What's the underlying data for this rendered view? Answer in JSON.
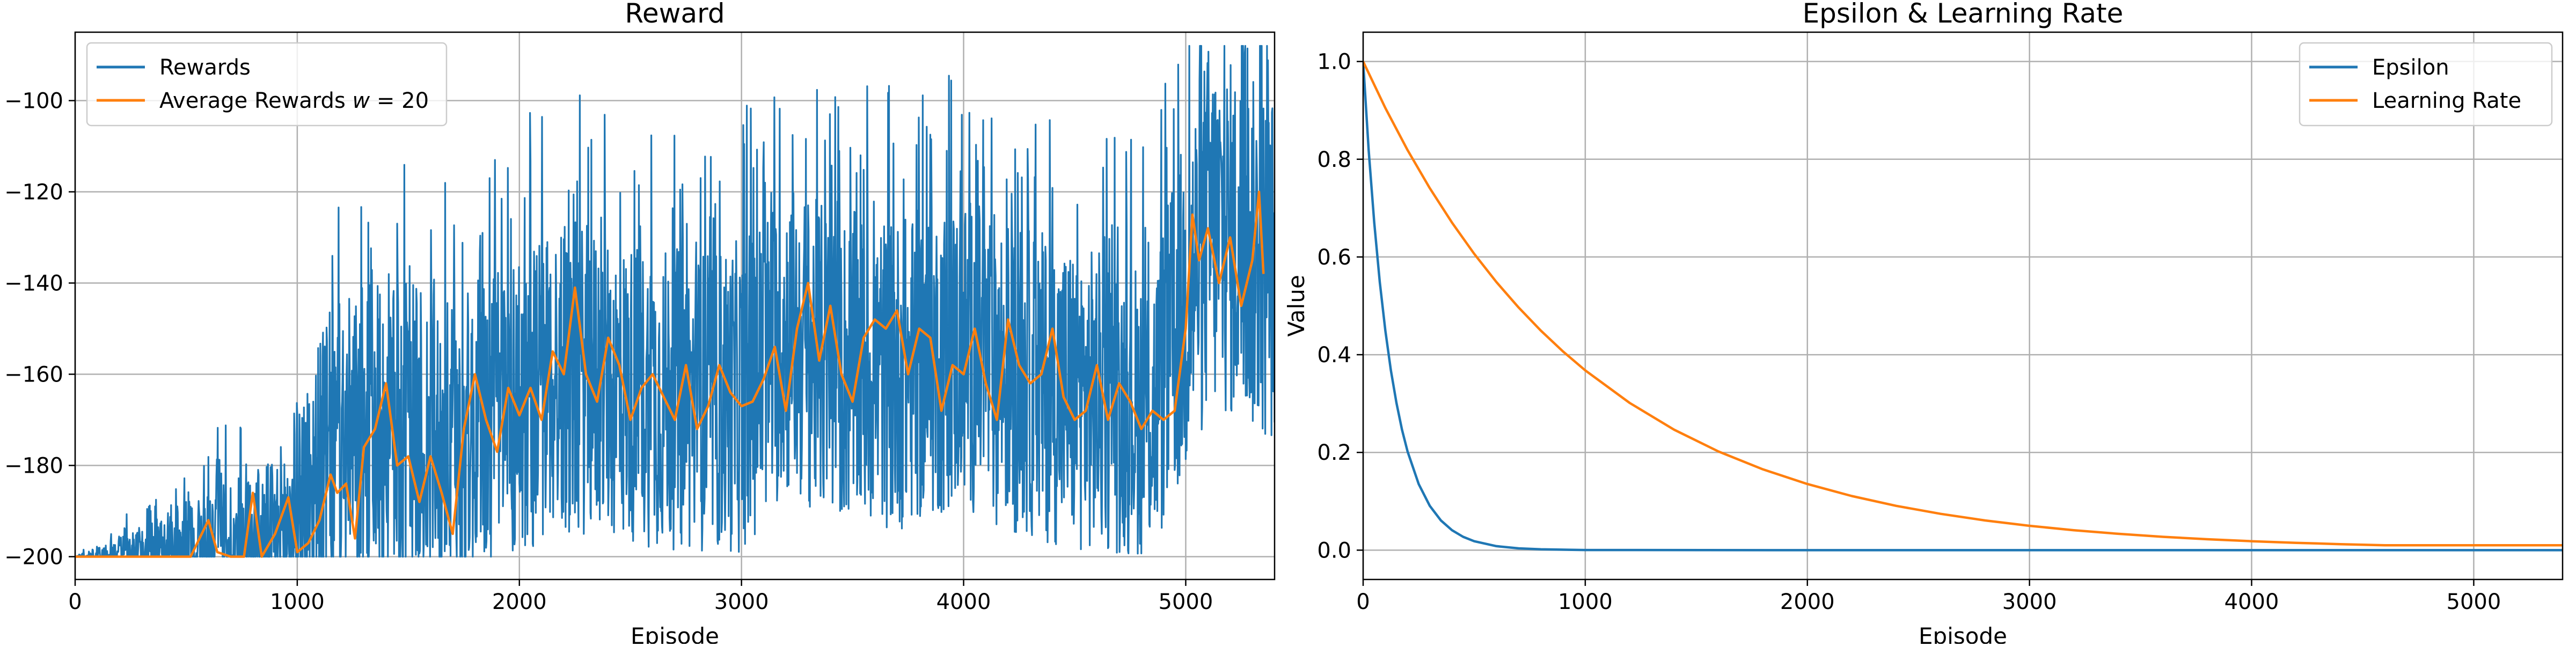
{
  "chart_data": [
    {
      "type": "line",
      "title": "Reward",
      "xlabel": "Episode",
      "ylabel": "",
      "xlim": [
        0,
        5400
      ],
      "ylim": [
        -205,
        -85
      ],
      "xticks": [
        0,
        1000,
        2000,
        3000,
        4000,
        5000
      ],
      "yticks": [
        -100,
        -120,
        -140,
        -160,
        -180,
        -200
      ],
      "grid": true,
      "legend_position": "top-left",
      "series": [
        {
          "name": "Rewards",
          "color": "#1f77b4",
          "kind": "episode-rewards",
          "x": [
            0,
            400,
            500,
            700,
            900,
            1150,
            1400,
            1700,
            2000,
            2200,
            2500,
            2800,
            3000,
            3200,
            3400,
            3700,
            4000,
            4300,
            4600,
            4850,
            5000,
            5100,
            5250,
            5350
          ],
          "mean": [
            -200,
            -200,
            -199,
            -198,
            -197,
            -178,
            -172,
            -176,
            -166,
            -160,
            -164,
            -166,
            -165,
            -152,
            -158,
            -160,
            -155,
            -162,
            -166,
            -168,
            -145,
            -128,
            -132,
            -136
          ],
          "spread": [
            0,
            8,
            10,
            14,
            16,
            28,
            30,
            28,
            30,
            30,
            29,
            29,
            30,
            30,
            30,
            30,
            30,
            30,
            29,
            28,
            34,
            36,
            34,
            34
          ]
        },
        {
          "name": "Average Rewards w = 20",
          "legend_prefix": "Average Rewards ",
          "legend_math": "w",
          "legend_suffix": " = 20",
          "color": "#ff7f0e",
          "x": [
            0,
            400,
            520,
            560,
            600,
            640,
            700,
            760,
            800,
            840,
            900,
            960,
            1000,
            1050,
            1100,
            1150,
            1180,
            1220,
            1260,
            1300,
            1350,
            1400,
            1450,
            1500,
            1550,
            1600,
            1650,
            1700,
            1750,
            1800,
            1850,
            1900,
            1950,
            2000,
            2050,
            2100,
            2150,
            2200,
            2250,
            2300,
            2350,
            2400,
            2450,
            2500,
            2550,
            2600,
            2650,
            2700,
            2750,
            2800,
            2850,
            2900,
            2950,
            3000,
            3050,
            3100,
            3150,
            3200,
            3250,
            3300,
            3350,
            3400,
            3450,
            3500,
            3550,
            3600,
            3650,
            3700,
            3750,
            3800,
            3850,
            3900,
            3950,
            4000,
            4050,
            4100,
            4150,
            4200,
            4250,
            4300,
            4350,
            4400,
            4450,
            4500,
            4550,
            4600,
            4650,
            4700,
            4750,
            4800,
            4850,
            4900,
            4950,
            5000,
            5030,
            5060,
            5100,
            5150,
            5200,
            5250,
            5300,
            5330,
            5350
          ],
          "y": [
            -200,
            -200,
            -200,
            -196,
            -192,
            -199,
            -200,
            -200,
            -186,
            -200,
            -195,
            -187,
            -199,
            -197,
            -192,
            -182,
            -186,
            -184,
            -196,
            -176,
            -172,
            -162,
            -180,
            -178,
            -188,
            -178,
            -186,
            -195,
            -172,
            -160,
            -170,
            -177,
            -163,
            -169,
            -163,
            -170,
            -155,
            -160,
            -141,
            -160,
            -166,
            -152,
            -158,
            -170,
            -163,
            -160,
            -165,
            -170,
            -158,
            -172,
            -167,
            -158,
            -164,
            -167,
            -166,
            -161,
            -154,
            -168,
            -150,
            -140,
            -157,
            -145,
            -160,
            -166,
            -152,
            -148,
            -150,
            -146,
            -160,
            -150,
            -152,
            -168,
            -158,
            -160,
            -150,
            -162,
            -170,
            -148,
            -158,
            -162,
            -160,
            -150,
            -165,
            -170,
            -168,
            -158,
            -170,
            -162,
            -166,
            -172,
            -168,
            -170,
            -168,
            -150,
            -125,
            -135,
            -128,
            -140,
            -130,
            -145,
            -135,
            -120,
            -138
          ]
        }
      ]
    },
    {
      "type": "line",
      "title": "Epsilon & Learning Rate",
      "xlabel": "Episode",
      "ylabel": "Value",
      "xlim": [
        0,
        5400
      ],
      "ylim": [
        -0.06,
        1.06
      ],
      "xticks": [
        0,
        1000,
        2000,
        3000,
        4000,
        5000
      ],
      "yticks": [
        0.0,
        0.2,
        0.4,
        0.6,
        0.8,
        1.0
      ],
      "ytick_labels": [
        "0.0",
        "0.2",
        "0.4",
        "0.6",
        "0.8",
        "1.0"
      ],
      "grid": true,
      "legend_position": "top-right",
      "series": [
        {
          "name": "Epsilon",
          "color": "#1f77b4",
          "x": [
            0,
            25,
            50,
            75,
            100,
            125,
            150,
            175,
            200,
            250,
            300,
            350,
            400,
            450,
            500,
            600,
            700,
            800,
            1000,
            2000,
            3000,
            4000,
            5000,
            5400
          ],
          "y": [
            1.0,
            0.8187,
            0.6703,
            0.5488,
            0.4493,
            0.3679,
            0.3012,
            0.2466,
            0.2019,
            0.1353,
            0.0907,
            0.0608,
            0.0408,
            0.0273,
            0.0183,
            0.0082,
            0.0037,
            0.0017,
            0.0003,
            0.0,
            0.0,
            0.0,
            0.0,
            0.0
          ]
        },
        {
          "name": "Learning Rate",
          "color": "#ff7f0e",
          "x": [
            0,
            100,
            200,
            300,
            400,
            500,
            600,
            700,
            800,
            900,
            1000,
            1200,
            1400,
            1600,
            1800,
            2000,
            2200,
            2400,
            2600,
            2800,
            3000,
            3200,
            3400,
            3600,
            3800,
            4000,
            4200,
            4400,
            4600,
            4800,
            5000,
            5200,
            5400
          ],
          "y": [
            1.0,
            0.9048,
            0.8187,
            0.7408,
            0.6703,
            0.6065,
            0.5488,
            0.4966,
            0.4493,
            0.4066,
            0.3679,
            0.3012,
            0.2466,
            0.2019,
            0.1653,
            0.1353,
            0.1108,
            0.0907,
            0.0743,
            0.0608,
            0.0498,
            0.0408,
            0.0334,
            0.0273,
            0.0224,
            0.0183,
            0.015,
            0.0123,
            0.0101,
            0.01,
            0.01,
            0.01,
            0.01
          ]
        }
      ]
    }
  ]
}
